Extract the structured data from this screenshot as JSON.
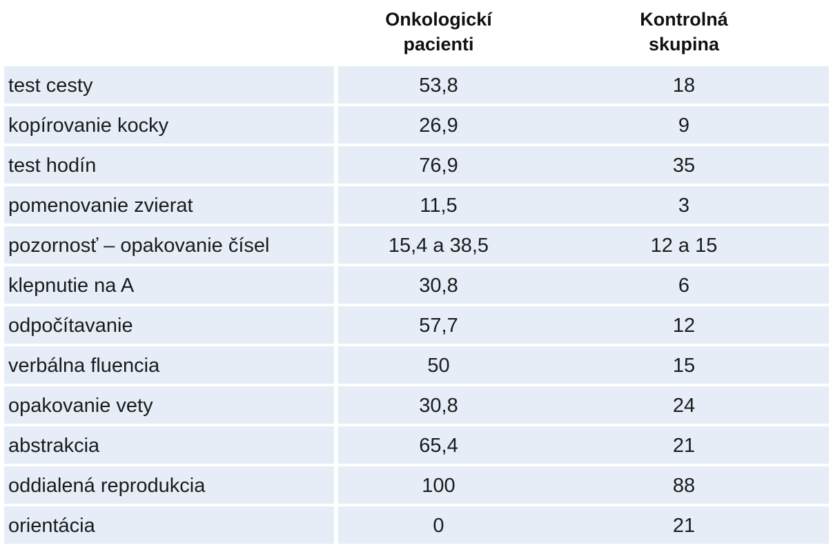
{
  "table": {
    "headers": {
      "col1": "",
      "col2": [
        "Onkologickí",
        "pacienti"
      ],
      "col3": [
        "Kontrolná",
        "skupina"
      ]
    },
    "rows": [
      {
        "label": "test cesty",
        "onkologicki": "53,8",
        "kontrolna": "18"
      },
      {
        "label": "kopírovanie kocky",
        "onkologicki": "26,9",
        "kontrolna": "9"
      },
      {
        "label": "test hodín",
        "onkologicki": "76,9",
        "kontrolna": "35"
      },
      {
        "label": "pomenovanie zvierat",
        "onkologicki": "11,5",
        "kontrolna": "3"
      },
      {
        "label": "pozornosť – opakovanie čísel",
        "onkologicki": "15,4 a 38,5",
        "kontrolna": "12 a 15"
      },
      {
        "label": "klepnutie na A",
        "onkologicki": "30,8",
        "kontrolna": "6"
      },
      {
        "label": "odpočítavanie",
        "onkologicki": "57,7",
        "kontrolna": "12"
      },
      {
        "label": "verbálna fluencia",
        "onkologicki": "50",
        "kontrolna": "15"
      },
      {
        "label": "opakovanie vety",
        "onkologicki": "30,8",
        "kontrolna": "24"
      },
      {
        "label": "abstrakcia",
        "onkologicki": "65,4",
        "kontrolna": "21"
      },
      {
        "label": "oddialená reprodukcia",
        "onkologicki": "100",
        "kontrolna": "88"
      },
      {
        "label": "orientácia",
        "onkologicki": "0",
        "kontrolna": "21"
      }
    ],
    "row_shading_color": "#e6edf7"
  }
}
